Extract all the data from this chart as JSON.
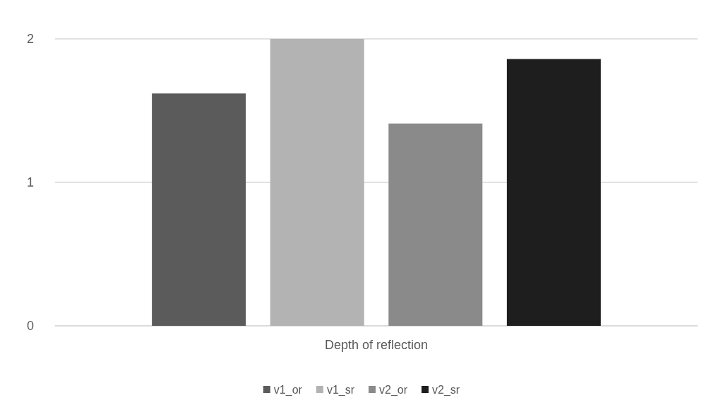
{
  "chart_data": {
    "type": "bar",
    "categories": [
      "Depth of reflection"
    ],
    "series": [
      {
        "name": "v1_or",
        "color": "#5b5b5b",
        "values": [
          1.62
        ]
      },
      {
        "name": "v1_sr",
        "color": "#b3b3b3",
        "values": [
          2.0
        ]
      },
      {
        "name": "v2_or",
        "color": "#8a8a8a",
        "values": [
          1.41
        ]
      },
      {
        "name": "v2_sr",
        "color": "#1e1e1e",
        "values": [
          1.86
        ]
      }
    ],
    "ylim": [
      0,
      2
    ],
    "yticks": [
      0,
      1,
      2
    ],
    "grid": "y",
    "legend": "bottom"
  }
}
